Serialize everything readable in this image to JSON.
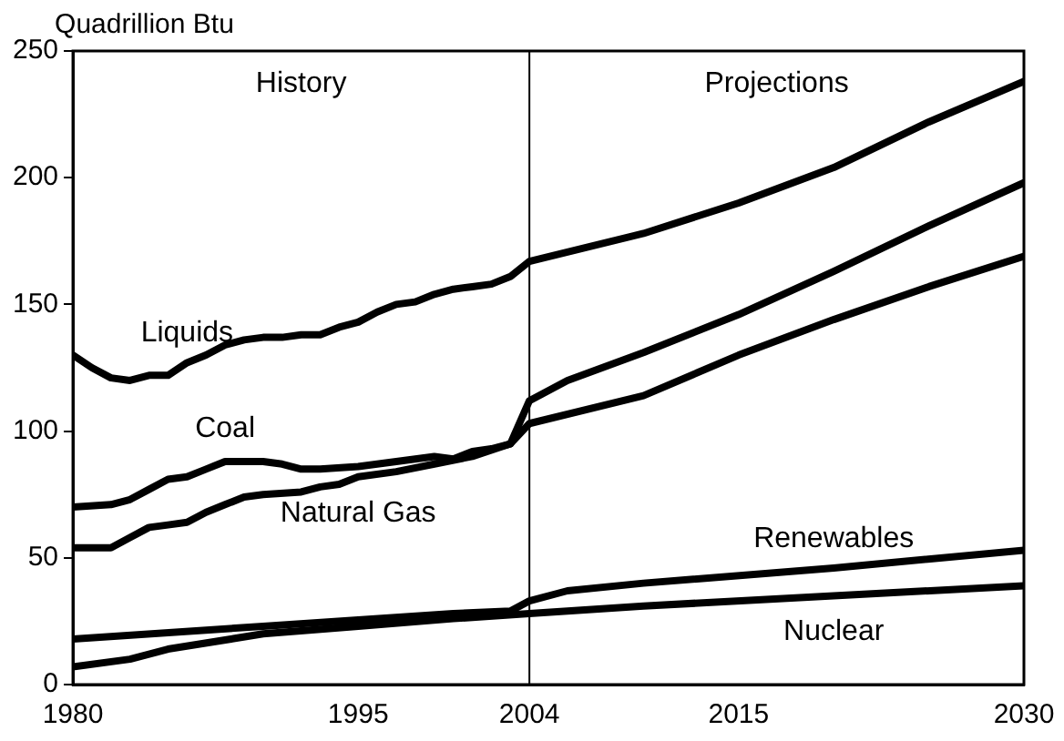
{
  "chart_data": {
    "type": "line",
    "ylabel": "Quadrillion Btu",
    "xlim": [
      1980,
      2030
    ],
    "xticks": [
      1980,
      1995,
      2004,
      2015,
      2030
    ],
    "ylim": [
      0,
      250
    ],
    "yticks": [
      0,
      50,
      100,
      150,
      200,
      250
    ],
    "grid": false,
    "legend": false,
    "marker": "none",
    "line_style": "solid",
    "annotations": [
      "History",
      "Projections"
    ],
    "ref_lines": [
      {
        "axis": "x",
        "value": 2004,
        "color": "#000000"
      }
    ],
    "series": [
      {
        "name": "Liquids",
        "color": "#000000",
        "x": [
          1980,
          1981,
          1982,
          1983,
          1984,
          1985,
          1986,
          1987,
          1988,
          1989,
          1990,
          1991,
          1992,
          1993,
          1994,
          1995,
          1996,
          1997,
          1998,
          1999,
          2000,
          2001,
          2002,
          2003,
          2004,
          2010,
          2015,
          2020,
          2025,
          2030
        ],
        "values": [
          130,
          125,
          121,
          120,
          122,
          122,
          127,
          130,
          134,
          136,
          137,
          137,
          138,
          138,
          141,
          143,
          147,
          150,
          151,
          154,
          156,
          157,
          158,
          161,
          167,
          178,
          190,
          204,
          222,
          238
        ]
      },
      {
        "name": "Coal",
        "color": "#000000",
        "x": [
          1980,
          1982,
          1983,
          1984,
          1985,
          1986,
          1987,
          1988,
          1990,
          1991,
          1992,
          1993,
          1995,
          1997,
          1999,
          2000,
          2001,
          2002,
          2003,
          2004,
          2006,
          2010,
          2015,
          2020,
          2025,
          2030
        ],
        "values": [
          70,
          71,
          73,
          77,
          81,
          82,
          85,
          88,
          88,
          87,
          85,
          85,
          86,
          88,
          90,
          89,
          92,
          93,
          95,
          112,
          120,
          131,
          146,
          163,
          181,
          198
        ]
      },
      {
        "name": "Natural Gas",
        "color": "#000000",
        "x": [
          1980,
          1982,
          1983,
          1984,
          1985,
          1986,
          1987,
          1988,
          1989,
          1990,
          1992,
          1993,
          1994,
          1995,
          1997,
          1999,
          2001,
          2003,
          2004,
          2010,
          2015,
          2020,
          2025,
          2030
        ],
        "values": [
          54,
          54,
          58,
          62,
          63,
          64,
          68,
          71,
          74,
          75,
          76,
          78,
          79,
          82,
          84,
          87,
          90,
          95,
          103,
          114,
          130,
          144,
          157,
          169
        ]
      },
      {
        "name": "Renewables",
        "color": "#000000",
        "x": [
          1980,
          1990,
          2000,
          2003,
          2004,
          2006,
          2010,
          2020,
          2030
        ],
        "values": [
          18,
          23,
          28,
          29,
          33,
          37,
          40,
          46,
          53
        ]
      },
      {
        "name": "Nuclear",
        "color": "#000000",
        "x": [
          1980,
          1983,
          1985,
          1990,
          1995,
          2000,
          2004,
          2010,
          2020,
          2030
        ],
        "values": [
          7,
          10,
          14,
          20,
          23,
          26,
          28,
          31,
          35,
          39
        ]
      }
    ]
  }
}
